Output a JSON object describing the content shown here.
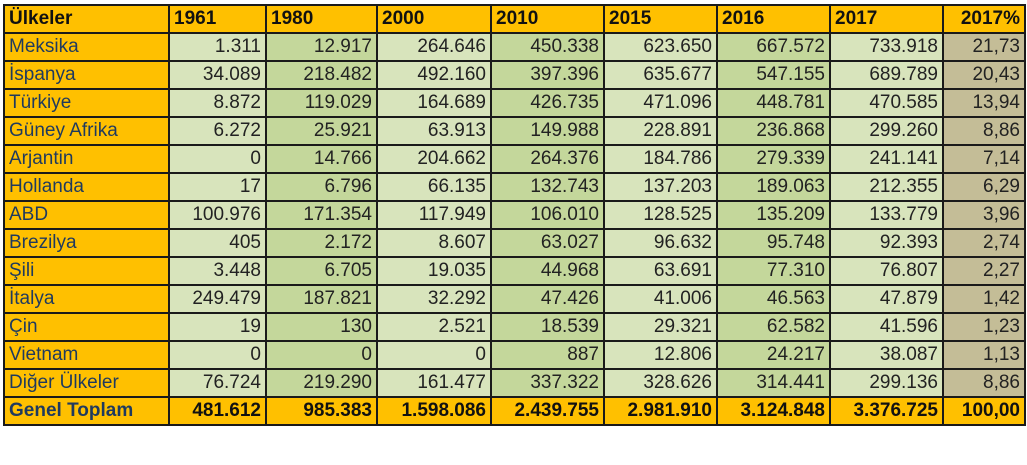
{
  "table": {
    "headers": [
      "Ülkeler",
      "1961",
      "1980",
      "2000",
      "2010",
      "2015",
      "2016",
      "2017",
      "2017%"
    ],
    "rows": [
      [
        "Meksika",
        "1.311",
        "12.917",
        "264.646",
        "450.338",
        "623.650",
        "667.572",
        "733.918",
        "21,73"
      ],
      [
        "İspanya",
        "34.089",
        "218.482",
        "492.160",
        "397.396",
        "635.677",
        "547.155",
        "689.789",
        "20,43"
      ],
      [
        "Türkiye",
        "8.872",
        "119.029",
        "164.689",
        "426.735",
        "471.096",
        "448.781",
        "470.585",
        "13,94"
      ],
      [
        "Güney Afrika",
        "6.272",
        "25.921",
        "63.913",
        "149.988",
        "228.891",
        "236.868",
        "299.260",
        "8,86"
      ],
      [
        "Arjantin",
        "0",
        "14.766",
        "204.662",
        "264.376",
        "184.786",
        "279.339",
        "241.141",
        "7,14"
      ],
      [
        "Hollanda",
        "17",
        "6.796",
        "66.135",
        "132.743",
        "137.203",
        "189.063",
        "212.355",
        "6,29"
      ],
      [
        "ABD",
        "100.976",
        "171.354",
        "117.949",
        "106.010",
        "128.525",
        "135.209",
        "133.779",
        "3,96"
      ],
      [
        "Brezilya",
        "405",
        "2.172",
        "8.607",
        "63.027",
        "96.632",
        "95.748",
        "92.393",
        "2,74"
      ],
      [
        "Şili",
        "3.448",
        "6.705",
        "19.035",
        "44.968",
        "63.691",
        "77.310",
        "76.807",
        "2,27"
      ],
      [
        "İtalya",
        "249.479",
        "187.821",
        "32.292",
        "47.426",
        "41.006",
        "46.563",
        "47.879",
        "1,42"
      ],
      [
        "Çin",
        "19",
        "130",
        "2.521",
        "18.539",
        "29.321",
        "62.582",
        "41.596",
        "1,23"
      ],
      [
        "Vietnam",
        "0",
        "0",
        "0",
        "887",
        "12.806",
        "24.217",
        "38.087",
        "1,13"
      ],
      [
        "Diğer Ülkeler",
        "76.724",
        "219.290",
        "161.477",
        "337.322",
        "328.626",
        "314.441",
        "299.136",
        "8,86"
      ]
    ],
    "total": [
      "Genel Toplam",
      "481.612",
      "985.383",
      "1.598.086",
      "2.439.755",
      "2.981.910",
      "3.124.848",
      "3.376.725",
      "100,00"
    ]
  },
  "colors": {
    "header": "#FFC000",
    "light_green": "#D8E4BC",
    "dark_green": "#C4D79B",
    "percent": "#C4BD97"
  }
}
